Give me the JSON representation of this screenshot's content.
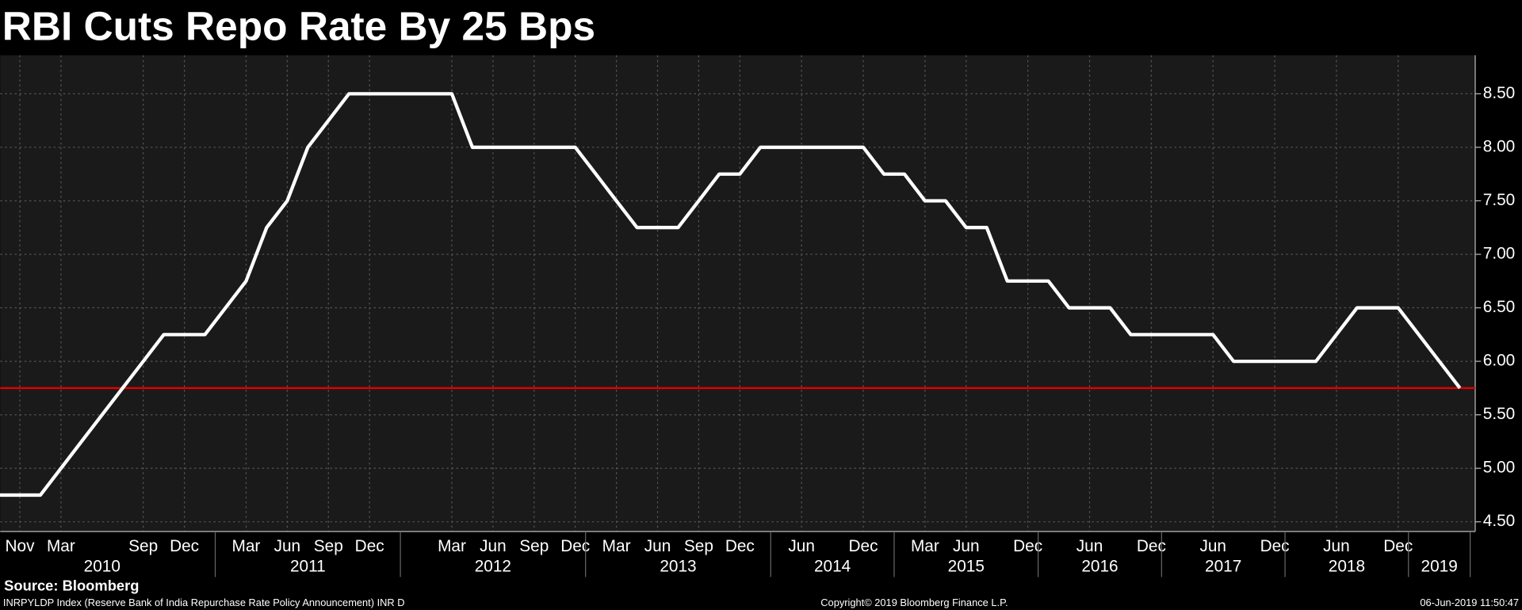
{
  "chart_data": {
    "type": "line",
    "title": "RBI Cuts Repo Rate By 25 Bps",
    "source": "Source: Bloomberg",
    "footer_left": "INRPYLDP Index (Reserve Bank of India Repurchase Rate Policy Announcement) INR D",
    "footer_center": "Copyright© 2019 Bloomberg Finance L.P.",
    "footer_right": "06-Jun-2019 11:50:47",
    "categories": [
      null,
      "Nov",
      null,
      "Mar",
      null,
      null,
      null,
      "Sep",
      null,
      "Dec",
      null,
      null,
      "Mar",
      null,
      "Jun",
      null,
      "Sep",
      null,
      "Dec",
      null,
      null,
      null,
      "Mar",
      null,
      "Jun",
      null,
      "Sep",
      null,
      "Dec",
      null,
      "Mar",
      null,
      "Jun",
      null,
      "Sep",
      null,
      "Dec",
      null,
      null,
      "Jun",
      null,
      null,
      "Dec",
      null,
      null,
      "Mar",
      null,
      "Jun",
      null,
      null,
      "Dec",
      null,
      null,
      "Jun",
      null,
      null,
      "Dec",
      null,
      null,
      "Jun",
      null,
      null,
      "Dec",
      null,
      null,
      "Jun",
      null,
      null,
      "Dec",
      null,
      null,
      null
    ],
    "year_groups": [
      {
        "label": "2010",
        "first": 0,
        "last": 10
      },
      {
        "label": "2011",
        "first": 11,
        "last": 19
      },
      {
        "label": "2012",
        "first": 20,
        "last": 28
      },
      {
        "label": "2013",
        "first": 29,
        "last": 37
      },
      {
        "label": "2014",
        "first": 38,
        "last": 43
      },
      {
        "label": "2015",
        "first": 44,
        "last": 50
      },
      {
        "label": "2016",
        "first": 51,
        "last": 56
      },
      {
        "label": "2017",
        "first": 57,
        "last": 62
      },
      {
        "label": "2018",
        "first": 63,
        "last": 68
      },
      {
        "label": "2019",
        "first": 69,
        "last": 71
      }
    ],
    "values": [
      4.75,
      4.75,
      4.75,
      5.0,
      5.25,
      5.5,
      5.75,
      6.0,
      6.25,
      6.25,
      6.25,
      6.5,
      6.75,
      7.25,
      7.5,
      8.0,
      8.25,
      8.5,
      8.5,
      8.5,
      8.5,
      8.5,
      8.5,
      8.0,
      8.0,
      8.0,
      8.0,
      8.0,
      8.0,
      7.75,
      7.5,
      7.25,
      7.25,
      7.25,
      7.5,
      7.75,
      7.75,
      8.0,
      8.0,
      8.0,
      8.0,
      8.0,
      8.0,
      7.75,
      7.75,
      7.5,
      7.5,
      7.25,
      7.25,
      6.75,
      6.75,
      6.75,
      6.5,
      6.5,
      6.5,
      6.25,
      6.25,
      6.25,
      6.25,
      6.25,
      6.0,
      6.0,
      6.0,
      6.0,
      6.0,
      6.25,
      6.5,
      6.5,
      6.5,
      6.25,
      6.0,
      5.75
    ],
    "color": "#ffffff",
    "reference_line": {
      "value": 5.75,
      "color": "#e00000"
    },
    "ylim": [
      4.41,
      8.86
    ],
    "yticks": [
      {
        "value": 4.5,
        "label": "4.50"
      },
      {
        "value": 5,
        "label": "5.00"
      },
      {
        "value": 5.5,
        "label": "5.50"
      },
      {
        "value": 6,
        "label": "6.00"
      },
      {
        "value": 6.5,
        "label": "6.50"
      },
      {
        "value": 7,
        "label": "7.00"
      },
      {
        "value": 7.5,
        "label": "7.50"
      },
      {
        "value": 8,
        "label": "8.00"
      },
      {
        "value": 8.5,
        "label": "8.50"
      }
    ],
    "y_axis_side": "right",
    "grid": true
  }
}
